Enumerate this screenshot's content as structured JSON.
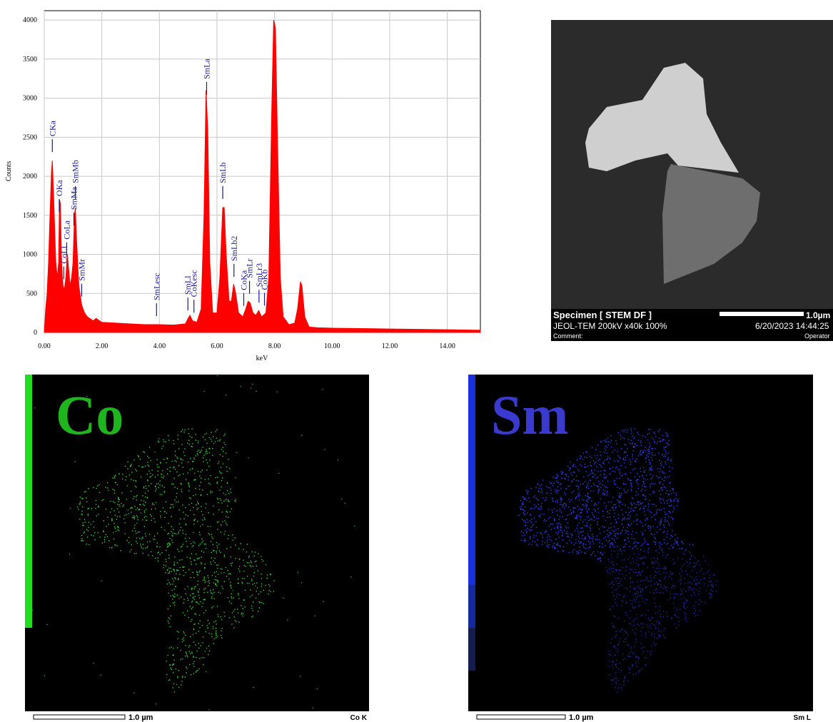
{
  "chart_data": {
    "type": "area",
    "x_label": "keV",
    "y_label": "Counts",
    "color": "#ff0000",
    "grid": true,
    "xlim": [
      0,
      15.15
    ],
    "ylim": [
      0,
      4120
    ],
    "xticks": [
      {
        "value": 0,
        "label": "0.00"
      },
      {
        "value": 2,
        "label": "2.00"
      },
      {
        "value": 4,
        "label": "4.00"
      },
      {
        "value": 6,
        "label": "6.00"
      },
      {
        "value": 8,
        "label": "8.00"
      },
      {
        "value": 10,
        "label": "10.00"
      },
      {
        "value": 12,
        "label": "12.00"
      },
      {
        "value": 14,
        "label": "14.00"
      }
    ],
    "yticks": [
      0,
      500,
      1000,
      1500,
      2000,
      2500,
      3000,
      3500,
      4000
    ],
    "x": [
      0,
      0.05,
      0.1,
      0.15,
      0.2,
      0.25,
      0.28,
      0.32,
      0.4,
      0.45,
      0.5,
      0.53,
      0.56,
      0.6,
      0.65,
      0.7,
      0.75,
      0.8,
      0.85,
      0.9,
      0.95,
      1.0,
      1.05,
      1.08,
      1.12,
      1.2,
      1.3,
      1.4,
      1.5,
      1.7,
      1.8,
      2.0,
      2.5,
      3.0,
      3.5,
      4.0,
      4.5,
      4.9,
      5.0,
      5.06,
      5.15,
      5.3,
      5.45,
      5.55,
      5.62,
      5.68,
      5.75,
      5.85,
      6.0,
      6.1,
      6.2,
      6.25,
      6.32,
      6.42,
      6.5,
      6.58,
      6.65,
      6.75,
      6.9,
      7.0,
      7.08,
      7.15,
      7.25,
      7.35,
      7.45,
      7.55,
      7.7,
      7.8,
      7.9,
      7.97,
      8.03,
      8.1,
      8.2,
      8.3,
      8.5,
      8.7,
      8.8,
      8.9,
      8.95,
      9.05,
      9.2,
      9.5,
      10,
      11,
      12,
      13,
      14,
      15,
      15.15
    ],
    "values": [
      0,
      300,
      500,
      900,
      1500,
      2050,
      2200,
      1800,
      900,
      700,
      900,
      1700,
      1650,
      900,
      600,
      550,
      700,
      1000,
      800,
      600,
      700,
      900,
      1500,
      1600,
      1200,
      600,
      350,
      250,
      200,
      150,
      180,
      130,
      120,
      110,
      100,
      100,
      95,
      110,
      180,
      220,
      150,
      130,
      300,
      1500,
      3100,
      2600,
      900,
      250,
      250,
      700,
      1600,
      1600,
      1000,
      400,
      400,
      620,
      500,
      250,
      200,
      300,
      400,
      380,
      250,
      220,
      280,
      200,
      250,
      700,
      2800,
      4000,
      3900,
      2500,
      700,
      200,
      100,
      120,
      300,
      650,
      600,
      200,
      70,
      60,
      55,
      50,
      45,
      40,
      35,
      30,
      30
    ],
    "peak_labels": [
      {
        "label": "CKa",
        "x": 0.28
      },
      {
        "label": "OKa",
        "x": 0.52
      },
      {
        "label": "CoLl",
        "x": 0.68
      },
      {
        "label": "CoLa",
        "x": 0.78
      },
      {
        "label": "SmMa",
        "x": 1.03
      },
      {
        "label": "SmMb",
        "x": 1.08
      },
      {
        "label": "SmMr",
        "x": 1.3
      },
      {
        "label": "SmLesc",
        "x": 3.9
      },
      {
        "label": "SmLl",
        "x": 4.99
      },
      {
        "label": "CoKesc",
        "x": 5.2
      },
      {
        "label": "SmLa",
        "x": 5.64
      },
      {
        "label": "SmLb",
        "x": 6.2
      },
      {
        "label": "SmLb2",
        "x": 6.59
      },
      {
        "label": "CoKa",
        "x": 6.93
      },
      {
        "label": "SmLr",
        "x": 7.13
      },
      {
        "label": "SmLr3",
        "x": 7.46
      },
      {
        "label": "CoKb",
        "x": 7.65
      }
    ]
  },
  "stem_image": {
    "specimen": "Specimen [ STEM DF ]",
    "instrument": "JEOL-TEM 200kV x40k 100%",
    "comment": "Comment:",
    "scale": "1.0µm",
    "date": "6/20/2023 14:44:25",
    "operator": "Operator"
  },
  "maps": [
    {
      "element": "Co",
      "scale": "1.0 µm",
      "line": "Co K"
    },
    {
      "element": "Sm",
      "scale": "1.0 µm",
      "line": "Sm L"
    }
  ]
}
